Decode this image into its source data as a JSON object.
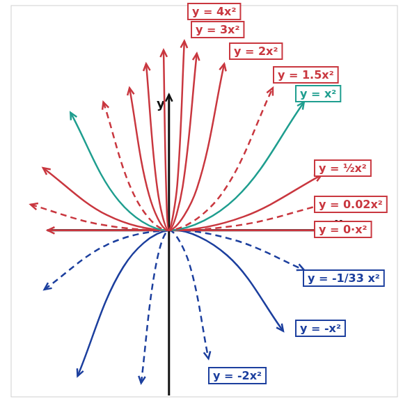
{
  "chart_data": {
    "type": "line",
    "xlabel": "x",
    "ylabel": "y",
    "xlim": [
      -3.8,
      5.5
    ],
    "ylim": [
      -4,
      5.4
    ],
    "grid": false,
    "tick_labels": false,
    "series": [
      {
        "name": "y = 4x²",
        "color": "#c9373f",
        "line_style": "solid",
        "x": [
          -0.13,
          -0.07,
          0,
          0.2,
          0.37
        ],
        "values": [
          4.33,
          1.1,
          0,
          1.1,
          4.55
        ]
      },
      {
        "name": "y = 3x²",
        "color": "#c9373f",
        "line_style": "solid",
        "x": [
          -0.55,
          -0.28,
          0,
          0.33,
          0.67
        ],
        "values": [
          4.0,
          1.0,
          0,
          1.05,
          4.25
        ]
      },
      {
        "name": "y = 2x²",
        "color": "#c9373f",
        "line_style": "solid",
        "x": [
          -0.95,
          -0.48,
          0,
          0.67,
          1.33
        ],
        "values": [
          3.42,
          0.85,
          0,
          1.0,
          4.0
        ]
      },
      {
        "name": "y = 1.5x²",
        "color": "#c9373f",
        "line_style": "dashed",
        "x": [
          -1.58,
          -0.8,
          0,
          1.25,
          2.5
        ],
        "values": [
          3.08,
          0.77,
          0,
          0.85,
          3.42
        ]
      },
      {
        "name": "y = x²",
        "color": "#1f9e8f",
        "line_style": "solid",
        "x": [
          -2.37,
          -1.2,
          0,
          1.6,
          3.25
        ],
        "values": [
          2.83,
          0.7,
          0,
          0.77,
          3.08
        ]
      },
      {
        "name": "y = ½x²",
        "color": "#c9373f",
        "line_style": "solid",
        "x": [
          -3.03,
          -1.5,
          0,
          1.8,
          3.67
        ],
        "values": [
          1.5,
          0.37,
          0,
          0.33,
          1.33
        ]
      },
      {
        "name": "y = 0.02x²",
        "color": "#c9373f",
        "line_style": "dashed",
        "x": [
          -3.33,
          -1.7,
          0,
          1.85,
          3.7
        ],
        "values": [
          0.62,
          0.15,
          0,
          0.15,
          0.62
        ]
      },
      {
        "name": "y = 0·x²",
        "color": "#c9373f",
        "line_style": "solid",
        "x": [
          -2.92,
          0,
          3.75
        ],
        "values": [
          0,
          0,
          0
        ]
      },
      {
        "name": "y = -1/33 x²",
        "color": "#1c3f9e",
        "line_style": "dashed",
        "x": [
          -3.0,
          -1.5,
          0,
          1.6,
          3.25
        ],
        "values": [
          -1.42,
          -0.35,
          0,
          -0.24,
          -0.95
        ]
      },
      {
        "name": "y = -x²",
        "color": "#1c3f9e",
        "line_style": "solid",
        "x": [
          -2.2,
          -1.1,
          0,
          1.4,
          2.75
        ],
        "values": [
          -3.5,
          -0.88,
          0,
          -0.6,
          -2.42
        ]
      },
      {
        "name": "y = -2x²",
        "color": "#1c3f9e",
        "line_style": "dashed",
        "x": [
          -0.67,
          -0.33,
          0,
          0.48,
          0.95
        ],
        "values": [
          -3.67,
          -0.92,
          0,
          -0.77,
          -3.08
        ]
      }
    ]
  }
}
